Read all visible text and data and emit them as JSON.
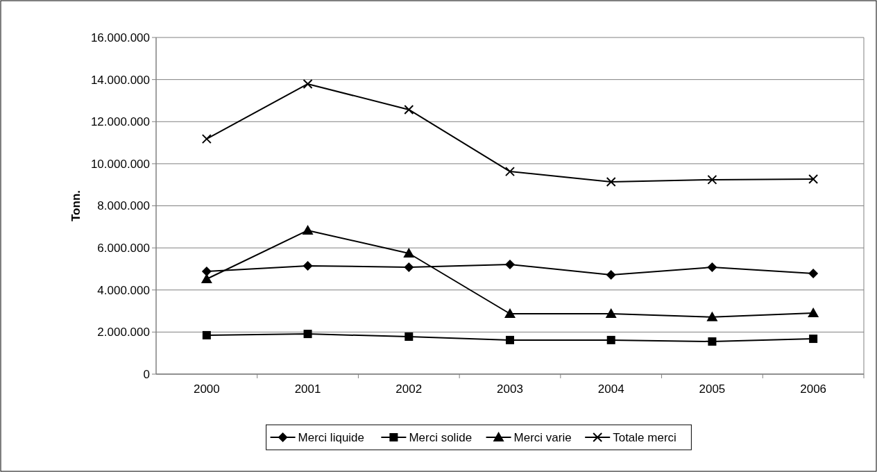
{
  "chart_data": {
    "type": "line",
    "ylabel": "Tonn.",
    "categories": [
      "2000",
      "2001",
      "2002",
      "2003",
      "2004",
      "2005",
      "2006"
    ],
    "series": [
      {
        "name": "Merci liquide",
        "color": "#000000",
        "marker": "diamond",
        "values": [
          4880000,
          5150000,
          5080000,
          5210000,
          4720000,
          5080000,
          4780000
        ]
      },
      {
        "name": "Merci solide",
        "color": "#000000",
        "marker": "square",
        "values": [
          1850000,
          1910000,
          1780000,
          1620000,
          1620000,
          1550000,
          1680000
        ]
      },
      {
        "name": "Merci varie",
        "color": "#000000",
        "marker": "triangle",
        "values": [
          4520000,
          6830000,
          5740000,
          2870000,
          2870000,
          2710000,
          2900000
        ]
      },
      {
        "name": "Totale merci",
        "color": "#000000",
        "marker": "cross",
        "values": [
          11180000,
          13790000,
          12570000,
          9630000,
          9140000,
          9240000,
          9270000
        ]
      }
    ],
    "ylim": [
      0,
      16000000
    ],
    "yticks": [
      {
        "value": 0,
        "label": "0"
      },
      {
        "value": 2000000,
        "label": "2.000.000"
      },
      {
        "value": 4000000,
        "label": "4.000.000"
      },
      {
        "value": 6000000,
        "label": "6.000.000"
      },
      {
        "value": 8000000,
        "label": "8.000.000"
      },
      {
        "value": 10000000,
        "label": "10.000.000"
      },
      {
        "value": 12000000,
        "label": "12.000.000"
      },
      {
        "value": 14000000,
        "label": "14.000.000"
      },
      {
        "value": 16000000,
        "label": "16.000.000"
      }
    ],
    "grid": "y",
    "legend": "bottom",
    "line_style": "solid"
  }
}
